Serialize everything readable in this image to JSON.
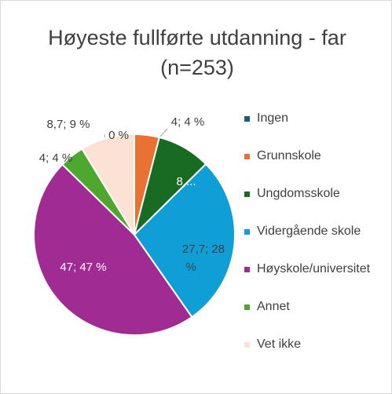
{
  "chart_data": {
    "type": "pie",
    "title": "Høyeste fullførte utdanning - far (n=253)",
    "categories": [
      "Ingen",
      "Grunnskole",
      "Ungdomsskole",
      "Vidergående skole",
      "Høyskole/universitet",
      "Annet",
      "Vet ikke"
    ],
    "values": [
      0,
      4,
      8.6,
      27.7,
      47,
      4,
      8.7
    ],
    "value_labels": [
      "0 %",
      "4; 4 %",
      "8,...",
      "27,7; 28 %",
      "47; 47 %",
      "4; 4 %",
      "8,7; 9 %"
    ],
    "colors": [
      "#1f5c7a",
      "#e97132",
      "#196b24",
      "#0f9ed5",
      "#a02b93",
      "#4ea72e",
      "#fbe2d5"
    ],
    "legend": "right"
  }
}
